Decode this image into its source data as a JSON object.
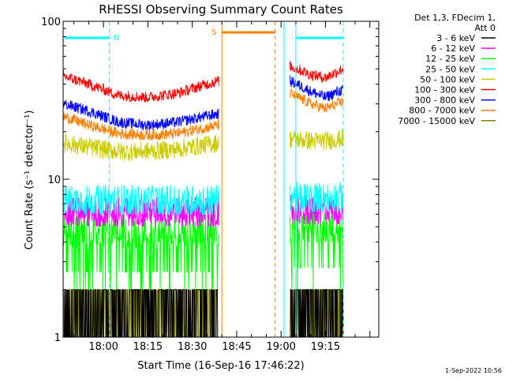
{
  "chart_data": {
    "type": "line",
    "title": "RHESSI Observing Summary Count Rates",
    "xlabel": "Start Time (16-Sep-16 17:46:22)",
    "ylabel": "Count Rate (s⁻¹ detector⁻¹)",
    "y_scale": "log",
    "ylim": [
      1,
      100
    ],
    "xlim": [
      "17:46:22",
      "19:33:00"
    ],
    "x_ticks": [
      "18:00",
      "18:15",
      "18:30",
      "18:45",
      "19:00",
      "19:15"
    ],
    "y_ticks": [
      "1",
      "10",
      "100"
    ],
    "legend_header": [
      "Det 1,3, FDecim 1,",
      "Att 0"
    ],
    "legend_position": "top-right-outside",
    "gaps": [
      [
        "18:39",
        "19:03"
      ]
    ],
    "flags": [
      {
        "label": "N",
        "color": "#00ffff",
        "spans": [
          [
            "17:46:22",
            "18:02"
          ],
          [
            "19:05",
            "19:21"
          ]
        ]
      },
      {
        "label": "S",
        "color": "#ff8000",
        "spans": [
          [
            "18:40",
            "18:58"
          ]
        ]
      }
    ],
    "boundaries": [
      {
        "time": "18:02",
        "color": "#00ffff",
        "style": "dashed"
      },
      {
        "time": "18:40",
        "color": "#ff8000",
        "style": "solid"
      },
      {
        "time": "18:58",
        "color": "#ff8000",
        "style": "dashed"
      },
      {
        "time": "19:01",
        "color": "#00ffff",
        "style": "solid"
      },
      {
        "time": "19:05",
        "color": "#00ffff",
        "style": "solid"
      },
      {
        "time": "19:21",
        "color": "#00ffff",
        "style": "dashed"
      }
    ],
    "series": [
      {
        "name": "3 - 6 keV",
        "color": "#000000",
        "segments": [
          {
            "t": [
              "17:46:22",
              "18:00",
              "18:15",
              "18:30",
              "18:39"
            ],
            "y": [
              1.5,
              1.5,
              1.5,
              1.5,
              1.5
            ]
          },
          {
            "t": [
              "19:03",
              "19:10",
              "19:15",
              "19:21"
            ],
            "y": [
              1.5,
              1.5,
              1.5,
              1.5
            ]
          }
        ]
      },
      {
        "name": "6 - 12 keV",
        "color": "#ff00ff",
        "segments": [
          {
            "t": [
              "17:46:22",
              "18:00",
              "18:15",
              "18:30",
              "18:39"
            ],
            "y": [
              6.3,
              6.3,
              6.3,
              6.3,
              6.3
            ]
          },
          {
            "t": [
              "19:03",
              "19:10",
              "19:15",
              "19:21"
            ],
            "y": [
              6.5,
              6.5,
              6.5,
              6.5
            ]
          }
        ]
      },
      {
        "name": "12 - 25 keV",
        "color": "#00ff00",
        "segments": [
          {
            "t": [
              "17:46:22",
              "18:00",
              "18:15",
              "18:30",
              "18:39"
            ],
            "y": [
              4.7,
              4.7,
              4.7,
              4.7,
              4.7
            ]
          },
          {
            "t": [
              "19:03",
              "19:10",
              "19:15",
              "19:21"
            ],
            "y": [
              5.0,
              5.0,
              5.0,
              5.0
            ]
          }
        ]
      },
      {
        "name": "25 - 50 keV",
        "color": "#00ffff",
        "segments": [
          {
            "t": [
              "17:46:22",
              "18:00",
              "18:15",
              "18:30",
              "18:39"
            ],
            "y": [
              7.5,
              7.5,
              7.5,
              7.5,
              7.5
            ]
          },
          {
            "t": [
              "19:03",
              "19:10",
              "19:15",
              "19:21"
            ],
            "y": [
              7.8,
              7.8,
              7.8,
              7.8
            ]
          }
        ]
      },
      {
        "name": "50 - 100 keV",
        "color": "#cccc00",
        "segments": [
          {
            "t": [
              "17:46:22",
              "17:55",
              "18:05",
              "18:15",
              "18:25",
              "18:39"
            ],
            "y": [
              17,
              16,
              15,
              15,
              15.5,
              17
            ]
          },
          {
            "t": [
              "19:03",
              "19:10",
              "19:15",
              "19:21"
            ],
            "y": [
              18,
              17.5,
              17.5,
              18
            ]
          }
        ]
      },
      {
        "name": "100 - 300 keV",
        "color": "#ff0000",
        "segments": [
          {
            "t": [
              "17:46:22",
              "17:55",
              "18:05",
              "18:15",
              "18:25",
              "18:39"
            ],
            "y": [
              45,
              40,
              34,
              33,
              35,
              42
            ]
          },
          {
            "t": [
              "19:03",
              "19:10",
              "19:15",
              "19:21"
            ],
            "y": [
              52,
              46,
              44,
              50
            ]
          }
        ]
      },
      {
        "name": "300 - 800 keV",
        "color": "#0000ff",
        "segments": [
          {
            "t": [
              "17:46:22",
              "17:55",
              "18:05",
              "18:15",
              "18:25",
              "18:39"
            ],
            "y": [
              30,
              27,
              23,
              22,
              23,
              26
            ]
          },
          {
            "t": [
              "19:03",
              "19:10",
              "19:15",
              "19:21"
            ],
            "y": [
              42,
              36,
              33,
              37
            ]
          }
        ]
      },
      {
        "name": "800 - 7000 keV",
        "color": "#ff8000",
        "segments": [
          {
            "t": [
              "17:46:22",
              "17:55",
              "18:05",
              "18:15",
              "18:25",
              "18:39"
            ],
            "y": [
              25,
              22,
              19.5,
              19,
              19.5,
              22
            ]
          },
          {
            "t": [
              "19:03",
              "19:10",
              "19:15",
              "19:21"
            ],
            "y": [
              35,
              30,
              28,
              31
            ]
          }
        ]
      },
      {
        "name": "7000 - 15000 keV",
        "color": "#808000",
        "segments": [
          {
            "t": [
              "17:46:22",
              "18:00",
              "18:15",
              "18:30",
              "18:39"
            ],
            "y": [
              1.5,
              1.5,
              1.5,
              1.5,
              1.5
            ]
          },
          {
            "t": [
              "19:03",
              "19:10",
              "19:15",
              "19:21"
            ],
            "y": [
              1.5,
              1.5,
              1.5,
              1.5
            ]
          }
        ]
      }
    ],
    "grid": false
  },
  "footer": {
    "date_stamp": "1-Sep-2022 10:56"
  }
}
